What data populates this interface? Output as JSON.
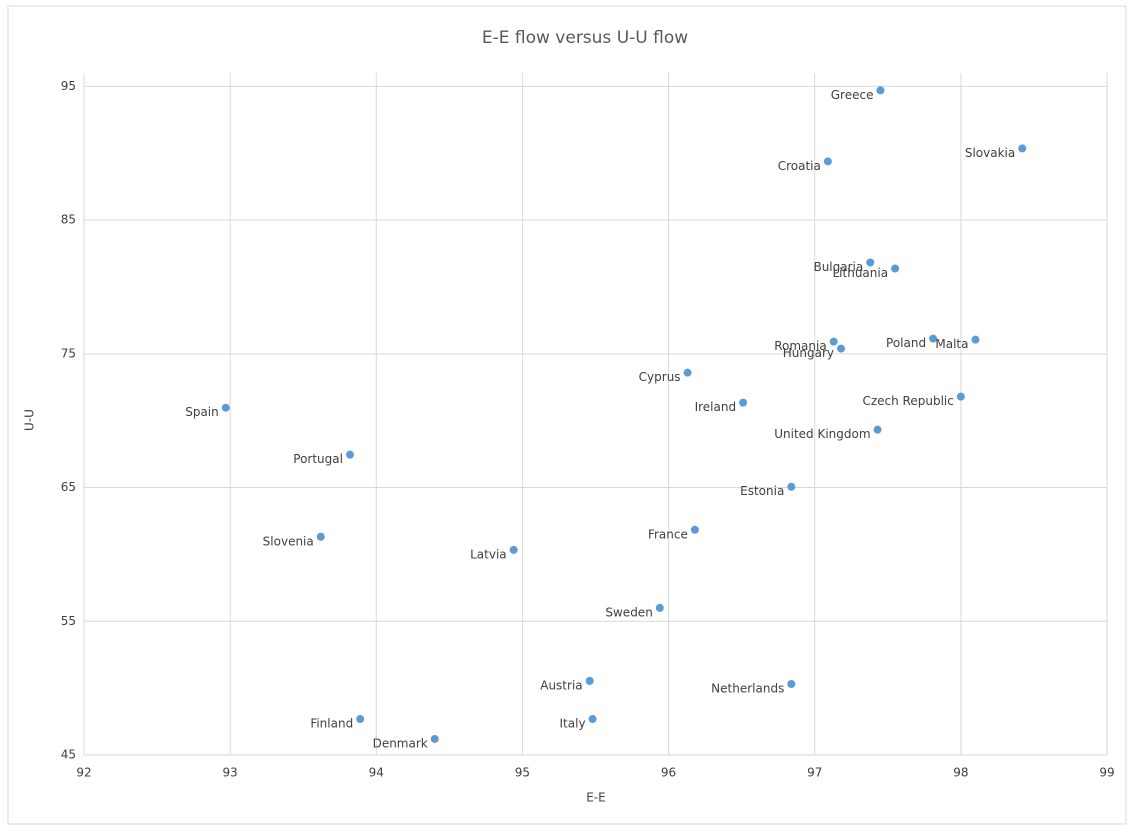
{
  "chart_data": {
    "type": "scatter",
    "title": "E-E flow versus U-U flow",
    "x_label": "E-E",
    "y_label": "U-U",
    "color": "#5b9bd5",
    "grid": true,
    "xlim": [
      92,
      99
    ],
    "xticks": [
      92,
      93,
      94,
      95,
      96,
      97,
      98,
      99
    ],
    "ylim": [
      45,
      96
    ],
    "yticks": [
      45,
      55,
      65,
      75,
      85,
      95
    ],
    "labels": [
      "Greece",
      "Slovakia",
      "Croatia",
      "Bulgaria",
      "Lithuania",
      "Poland",
      "Malta",
      "Romania",
      "Hungary",
      "Cyprus",
      "Czech Republic",
      "Ireland",
      "United Kingdom",
      "Spain",
      "Portugal",
      "Estonia",
      "France",
      "Slovenia",
      "Latvia",
      "Sweden",
      "Austria",
      "Netherlands",
      "Finland",
      "Italy",
      "Denmark"
    ],
    "x": [
      97.45,
      98.42,
      97.09,
      97.38,
      97.55,
      97.81,
      98.1,
      97.13,
      97.18,
      96.13,
      98.0,
      96.51,
      97.43,
      92.97,
      93.82,
      96.84,
      96.18,
      93.62,
      94.94,
      95.94,
      95.46,
      96.84,
      93.89,
      95.48,
      94.4
    ],
    "values": [
      94.7,
      90.36,
      89.39,
      81.83,
      81.38,
      76.14,
      76.06,
      75.91,
      75.39,
      73.59,
      71.8,
      71.35,
      69.33,
      70.97,
      67.46,
      65.06,
      61.84,
      61.32,
      60.34,
      56.0,
      50.54,
      50.31,
      47.69,
      47.69,
      46.2
    ]
  }
}
